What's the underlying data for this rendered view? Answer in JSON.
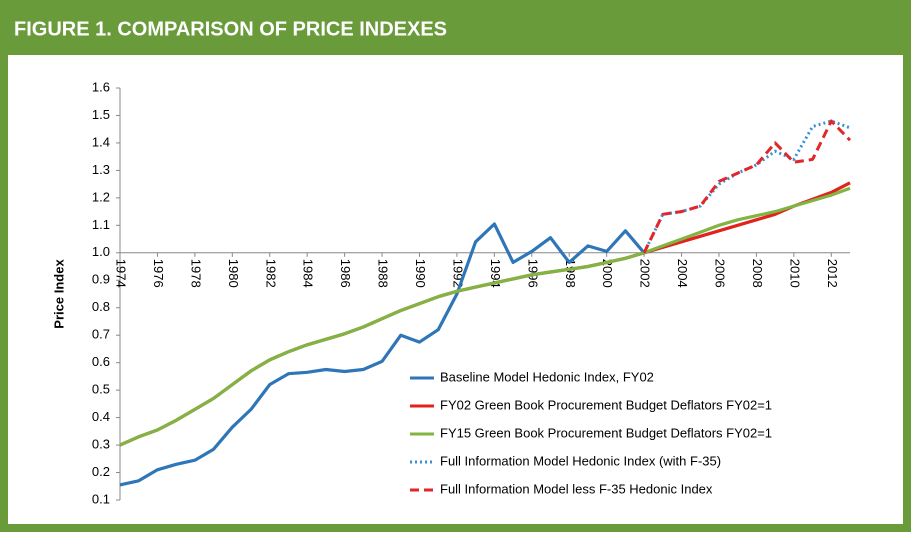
{
  "header": {
    "title": "FIGURE 1. COMPARISON OF PRICE INDEXES"
  },
  "chart_data": {
    "type": "line",
    "y_label": "Price Index",
    "x": [
      1974,
      1975,
      1976,
      1977,
      1978,
      1979,
      1980,
      1981,
      1982,
      1983,
      1984,
      1985,
      1986,
      1987,
      1988,
      1989,
      1990,
      1991,
      1992,
      1993,
      1994,
      1995,
      1996,
      1997,
      1998,
      1999,
      2000,
      2001,
      2002,
      2003,
      2004,
      2005,
      2006,
      2007,
      2008,
      2009,
      2010,
      2011,
      2012,
      2013
    ],
    "xlim": [
      1974,
      2013
    ],
    "xticks": [
      1974,
      1976,
      1978,
      1980,
      1982,
      1984,
      1986,
      1988,
      1990,
      1992,
      1994,
      1996,
      1998,
      2000,
      2002,
      2004,
      2006,
      2008,
      2010,
      2012
    ],
    "ylim": [
      0.1,
      1.6
    ],
    "yticks": [
      0.1,
      0.2,
      0.3,
      0.4,
      0.5,
      0.6,
      0.7,
      0.8,
      0.9,
      {
        "value": 1.0,
        "label": "1.0"
      },
      1.1,
      1.2,
      1.3,
      1.4,
      1.5,
      1.6
    ],
    "x_axis_at": 1.0,
    "series": [
      {
        "name": "Baseline Model Hedonic Index, FY02",
        "color": "#2f76b8",
        "style": "solid",
        "values": [
          0.155,
          0.17,
          0.21,
          0.23,
          0.245,
          0.285,
          0.365,
          0.43,
          0.52,
          0.56,
          0.565,
          0.575,
          0.568,
          0.575,
          0.605,
          0.7,
          0.675,
          0.72,
          0.85,
          1.04,
          1.105,
          0.965,
          1.005,
          1.055,
          0.965,
          1.025,
          1.005,
          1.08,
          1.0,
          null,
          null,
          null,
          null,
          null,
          null,
          null,
          null,
          null,
          null,
          null
        ]
      },
      {
        "name": "FY02 Green Book Procurement Budget Deflators FY02=1",
        "color": "#e2231d",
        "style": "solid",
        "values": [
          0.3,
          0.33,
          0.355,
          0.39,
          0.43,
          0.47,
          0.52,
          0.57,
          0.61,
          0.64,
          0.665,
          0.685,
          0.705,
          0.73,
          0.76,
          0.79,
          0.815,
          0.84,
          0.86,
          0.875,
          0.89,
          0.905,
          0.92,
          0.93,
          0.94,
          0.95,
          0.965,
          0.98,
          1.0,
          1.02,
          1.04,
          1.06,
          1.08,
          1.1,
          1.12,
          1.14,
          1.17,
          1.195,
          1.22,
          1.255
        ]
      },
      {
        "name": "FY15 Green Book Procurement Budget Deflators FY02=1",
        "color": "#80b443",
        "style": "solid",
        "values": [
          0.3,
          0.33,
          0.355,
          0.39,
          0.43,
          0.47,
          0.52,
          0.57,
          0.61,
          0.64,
          0.665,
          0.685,
          0.705,
          0.73,
          0.76,
          0.79,
          0.815,
          0.84,
          0.86,
          0.875,
          0.89,
          0.905,
          0.92,
          0.93,
          0.94,
          0.95,
          0.965,
          0.98,
          1.0,
          1.025,
          1.05,
          1.075,
          1.1,
          1.12,
          1.135,
          1.15,
          1.17,
          1.19,
          1.21,
          1.235
        ]
      },
      {
        "name": "Full Information Model Hedonic Index (with F-35)",
        "color": "#3b8fd2",
        "style": "dotted",
        "values": [
          null,
          null,
          null,
          null,
          null,
          null,
          null,
          null,
          null,
          null,
          null,
          null,
          null,
          null,
          null,
          null,
          null,
          null,
          null,
          null,
          null,
          null,
          null,
          null,
          null,
          null,
          null,
          null,
          1.0,
          1.14,
          1.15,
          1.17,
          1.25,
          1.29,
          1.32,
          1.37,
          1.34,
          1.46,
          1.48,
          1.455
        ]
      },
      {
        "name": "Full Information Model less F-35 Hedonic Index",
        "color": "#e2262a",
        "style": "dashed",
        "values": [
          null,
          null,
          null,
          null,
          null,
          null,
          null,
          null,
          null,
          null,
          null,
          null,
          null,
          null,
          null,
          null,
          null,
          null,
          null,
          null,
          null,
          null,
          null,
          null,
          null,
          null,
          null,
          null,
          1.0,
          1.14,
          1.15,
          1.17,
          1.26,
          1.29,
          1.32,
          1.4,
          1.33,
          1.34,
          1.48,
          1.41
        ]
      }
    ]
  }
}
